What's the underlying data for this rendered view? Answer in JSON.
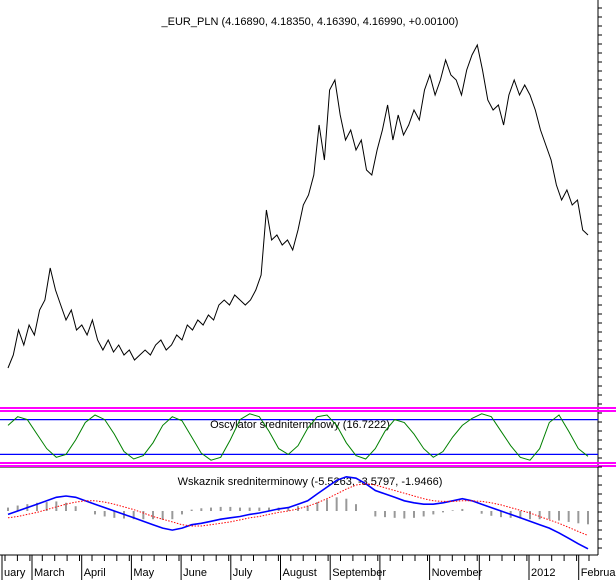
{
  "chart_data": [
    {
      "type": "line",
      "title": "_EUR_PLN (4.16890, 4.18350, 4.16390, 4.16990, +0.00100)",
      "color": "#000000",
      "ylim": [
        3.83,
        4.64
      ],
      "values": [
        3.904,
        3.93,
        3.98,
        3.95,
        3.99,
        3.97,
        4.02,
        4.04,
        4.104,
        4.06,
        4.03,
        4.0,
        4.02,
        3.98,
        3.99,
        3.97,
        4.0,
        3.96,
        3.94,
        3.96,
        3.936,
        3.95,
        3.93,
        3.94,
        3.92,
        3.93,
        3.94,
        3.93,
        3.95,
        3.96,
        3.94,
        3.95,
        3.97,
        3.96,
        3.99,
        3.98,
        4.0,
        3.99,
        4.01,
        4.0,
        4.03,
        4.04,
        4.03,
        4.05,
        4.04,
        4.03,
        4.04,
        4.06,
        4.09,
        4.22,
        4.16,
        4.17,
        4.15,
        4.16,
        4.14,
        4.18,
        4.23,
        4.25,
        4.29,
        4.39,
        4.32,
        4.46,
        4.48,
        4.41,
        4.36,
        4.38,
        4.34,
        4.36,
        4.3,
        4.29,
        4.34,
        4.38,
        4.43,
        4.36,
        4.41,
        4.37,
        4.39,
        4.42,
        4.4,
        4.46,
        4.49,
        4.45,
        4.48,
        4.52,
        4.49,
        4.48,
        4.45,
        4.5,
        4.53,
        4.55,
        4.5,
        4.44,
        4.42,
        4.43,
        4.39,
        4.45,
        4.48,
        4.45,
        4.47,
        4.45,
        4.42,
        4.38,
        4.35,
        4.32,
        4.27,
        4.24,
        4.26,
        4.23,
        4.24,
        4.18,
        4.1699
      ]
    },
    {
      "type": "oscillator",
      "title": "Oscylator sredniterminowy (16.7222)",
      "color": "#008000",
      "ylim": [
        0,
        100
      ],
      "levels": [
        20,
        80
      ],
      "level_color": "#0000ff",
      "band_color": "#ff00ff",
      "values": [
        70,
        85,
        80,
        55,
        30,
        15,
        20,
        45,
        75,
        88,
        80,
        55,
        25,
        12,
        18,
        40,
        70,
        85,
        78,
        50,
        22,
        10,
        15,
        45,
        80,
        90,
        85,
        60,
        30,
        20,
        35,
        65,
        85,
        88,
        70,
        40,
        18,
        12,
        30,
        60,
        80,
        75,
        55,
        30,
        15,
        25,
        50,
        70,
        82,
        90,
        85,
        60,
        35,
        15,
        10,
        30,
        75,
        88,
        60,
        30,
        16.7222
      ]
    },
    {
      "type": "macd",
      "title": "Wskaznik sredniterminowy (-5.5263, -3.5797, -1.9466)",
      "ylim": [
        -6,
        6
      ],
      "series": [
        {
          "color": "#0000ff",
          "values": [
            -0.5,
            0,
            0.5,
            1,
            1.5,
            2,
            2.2,
            2,
            1.5,
            1,
            0.5,
            0,
            -0.5,
            -1,
            -1.5,
            -2,
            -2.5,
            -2.8,
            -2.5,
            -2,
            -1.8,
            -1.5,
            -1.2,
            -1,
            -0.8,
            -0.5,
            -0.3,
            0,
            0.3,
            0.5,
            1,
            1.5,
            2.5,
            3.5,
            4.5,
            5,
            4.8,
            4,
            3,
            2.5,
            2,
            1.5,
            1.2,
            1,
            1,
            1.2,
            1.5,
            1.8,
            1.5,
            1,
            0.5,
            0,
            -0.5,
            -1,
            -1.5,
            -2,
            -2.5,
            -3.2,
            -4,
            -4.8,
            -5.5263
          ]
        },
        {
          "color": "#ff0000",
          "dotted": true,
          "values": [
            -1,
            -0.8,
            -0.5,
            -0.2,
            0.2,
            0.6,
            1,
            1.3,
            1.5,
            1.5,
            1.3,
            1,
            0.6,
            0.2,
            -0.3,
            -0.8,
            -1.2,
            -1.6,
            -2,
            -2.2,
            -2.2,
            -2,
            -1.8,
            -1.6,
            -1.3,
            -1,
            -0.8,
            -0.5,
            -0.2,
            0,
            0.3,
            0.7,
            1.2,
            1.8,
            2.5,
            3.2,
            3.8,
            4,
            3.8,
            3.4,
            3,
            2.6,
            2.2,
            1.8,
            1.5,
            1.4,
            1.4,
            1.5,
            1.5,
            1.4,
            1.2,
            0.9,
            0.5,
            0.1,
            -0.3,
            -0.8,
            -1.3,
            -1.8,
            -2.4,
            -3,
            -3.5797
          ]
        }
      ],
      "histogram": {
        "color": "#999999",
        "values": [
          0.5,
          0.8,
          1,
          1.2,
          1.3,
          1.4,
          1.2,
          0.7,
          0,
          -0.5,
          -0.8,
          -1,
          -1.1,
          -1.2,
          -1.2,
          -1.2,
          -1.3,
          -1.2,
          -0.5,
          0.2,
          0.4,
          0.5,
          0.6,
          0.6,
          0.5,
          0.5,
          0.5,
          0.5,
          0.5,
          0.5,
          0.7,
          0.8,
          1.3,
          1.7,
          2,
          1.8,
          1,
          0,
          -0.8,
          -0.9,
          -1,
          -1.1,
          -1,
          -0.8,
          -0.5,
          -0.2,
          0.1,
          0.3,
          0,
          -0.4,
          -0.7,
          -0.9,
          -1,
          -1.1,
          -1.2,
          -1.2,
          -1.2,
          -1.4,
          -1.6,
          -1.8,
          -1.9466
        ]
      }
    }
  ],
  "x_axis": {
    "categories": [
      "uary",
      "March",
      "April",
      "May",
      "June",
      "July",
      "August",
      "September",
      null,
      "November",
      null,
      "2012",
      "Februar"
    ]
  }
}
